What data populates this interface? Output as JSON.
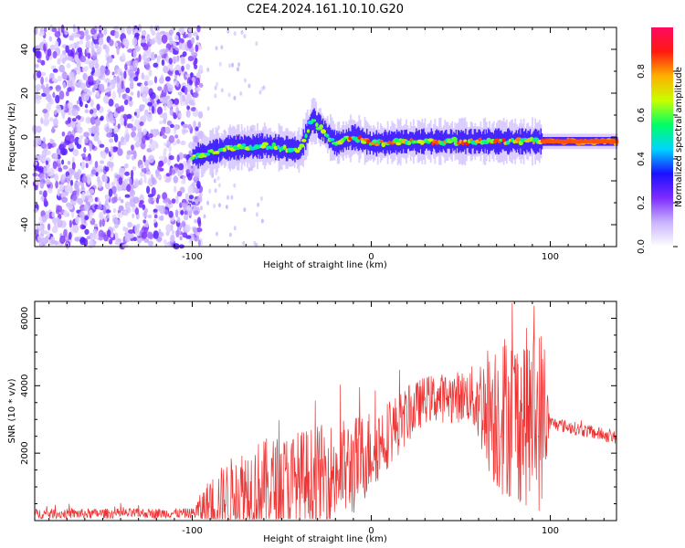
{
  "figure_title": "C2E4.2024.161.10.10.G20",
  "chart_data": [
    {
      "type": "heatmap",
      "title": "C2E4.2024.161.10.10.G20",
      "xlabel": "Height of straight line (km)",
      "ylabel": "Frequency (Hz)",
      "xlim": [
        -188,
        137
      ],
      "ylim": [
        -50,
        50
      ],
      "xticks": [
        -100,
        0,
        100
      ],
      "yticks": [
        -40,
        -20,
        0,
        20,
        40
      ],
      "colorbar": {
        "label": "Normalized spectral amplitude",
        "range": [
          0,
          1
        ],
        "ticks": [
          0.0,
          0.2,
          0.4,
          0.6,
          0.8
        ],
        "colormap": [
          "#ffffff",
          "#c9b3ff",
          "#7d2cff",
          "#1a10ff",
          "#00d4ff",
          "#00ff66",
          "#c8ff00",
          "#ffb000",
          "#ff1a10",
          "#ff0a60"
        ]
      },
      "noise_region_x": [
        -188,
        -95
      ],
      "ridge_center_hz": [
        {
          "x": -100,
          "y": -9
        },
        {
          "x": -80,
          "y": -5
        },
        {
          "x": -60,
          "y": -4
        },
        {
          "x": -40,
          "y": -6
        },
        {
          "x": -33,
          "y": 8
        },
        {
          "x": -20,
          "y": -3
        },
        {
          "x": -10,
          "y": 0
        },
        {
          "x": 0,
          "y": -3
        },
        {
          "x": 20,
          "y": -2
        },
        {
          "x": 60,
          "y": -2
        },
        {
          "x": 90,
          "y": -2
        },
        {
          "x": 137,
          "y": -2
        }
      ]
    },
    {
      "type": "line",
      "xlabel": "Height of straight line (km)",
      "ylabel": "SNR (10 * v/v)",
      "xlim": [
        -188,
        137
      ],
      "ylim": [
        0,
        6500
      ],
      "xticks": [
        -100,
        0,
        100
      ],
      "yticks": [
        2000,
        4000,
        6000
      ],
      "color": "#ee3333",
      "envelope": [
        {
          "x": -188,
          "base": 200,
          "amp": 150
        },
        {
          "x": -100,
          "base": 220,
          "amp": 150
        },
        {
          "x": -90,
          "base": 500,
          "amp": 800
        },
        {
          "x": -70,
          "base": 900,
          "amp": 1400
        },
        {
          "x": -40,
          "base": 1100,
          "amp": 1600
        },
        {
          "x": -10,
          "base": 1600,
          "amp": 1500
        },
        {
          "x": 10,
          "base": 2600,
          "amp": 1000
        },
        {
          "x": 30,
          "base": 3600,
          "amp": 700
        },
        {
          "x": 55,
          "base": 3700,
          "amp": 800
        },
        {
          "x": 70,
          "base": 3200,
          "amp": 2400
        },
        {
          "x": 95,
          "base": 3000,
          "amp": 2800
        },
        {
          "x": 100,
          "base": 2900,
          "amp": 200
        },
        {
          "x": 137,
          "base": 2450,
          "amp": 200
        }
      ]
    }
  ]
}
